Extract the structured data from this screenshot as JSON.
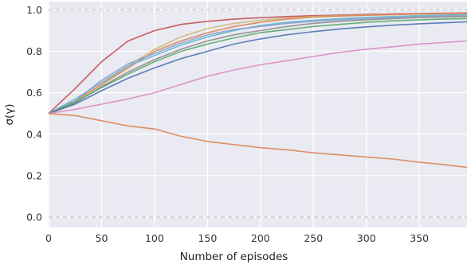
{
  "chart_data": {
    "type": "line",
    "title": "",
    "xlabel": "Number of episodes",
    "ylabel": "σ(γ)",
    "xlim": [
      0,
      395
    ],
    "ylim": [
      -0.05,
      1.04
    ],
    "xticks": [
      0,
      50,
      100,
      150,
      200,
      250,
      300,
      350
    ],
    "yticks": [
      0.0,
      0.2,
      0.4,
      0.6,
      0.8,
      1.0
    ],
    "grid": true,
    "background": "#eaeaf2",
    "reference_lines": [
      {
        "y": 0.0,
        "style": "dashed",
        "color": "#c8c8c8"
      },
      {
        "y": 1.0,
        "style": "dashed",
        "color": "#c8c8c8"
      }
    ],
    "x": [
      0,
      25,
      50,
      75,
      100,
      125,
      150,
      175,
      200,
      225,
      250,
      275,
      300,
      325,
      350,
      375,
      395
    ],
    "series": [
      {
        "color": "#c44e52",
        "values": [
          0.5,
          0.62,
          0.75,
          0.85,
          0.9,
          0.93,
          0.945,
          0.955,
          0.962,
          0.968,
          0.972,
          0.975,
          0.978,
          0.98,
          0.982,
          0.984,
          0.985
        ]
      },
      {
        "color": "#ccb974",
        "values": [
          0.5,
          0.56,
          0.64,
          0.73,
          0.81,
          0.87,
          0.91,
          0.935,
          0.95,
          0.96,
          0.968,
          0.972,
          0.975,
          0.978,
          0.98,
          0.982,
          0.983
        ]
      },
      {
        "color": "#dd8452",
        "values": [
          0.5,
          0.56,
          0.64,
          0.72,
          0.8,
          0.85,
          0.89,
          0.92,
          0.94,
          0.955,
          0.965,
          0.97,
          0.974,
          0.977,
          0.98,
          0.982,
          0.983
        ]
      },
      {
        "color": "#64b5cd",
        "values": [
          0.5,
          0.57,
          0.65,
          0.73,
          0.78,
          0.83,
          0.87,
          0.9,
          0.925,
          0.94,
          0.95,
          0.958,
          0.964,
          0.968,
          0.972,
          0.975,
          0.977
        ]
      },
      {
        "color": "#8da0cb",
        "values": [
          0.5,
          0.56,
          0.66,
          0.74,
          0.79,
          0.84,
          0.88,
          0.905,
          0.92,
          0.935,
          0.945,
          0.952,
          0.958,
          0.963,
          0.967,
          0.97,
          0.972
        ]
      },
      {
        "color": "#8c8c8c",
        "values": [
          0.5,
          0.55,
          0.63,
          0.7,
          0.76,
          0.81,
          0.85,
          0.88,
          0.9,
          0.92,
          0.935,
          0.945,
          0.952,
          0.958,
          0.963,
          0.966,
          0.968
        ]
      },
      {
        "color": "#55a868",
        "values": [
          0.5,
          0.555,
          0.625,
          0.69,
          0.75,
          0.8,
          0.835,
          0.865,
          0.89,
          0.905,
          0.92,
          0.93,
          0.94,
          0.947,
          0.952,
          0.956,
          0.958
        ]
      },
      {
        "color": "#4c72b0",
        "values": [
          0.5,
          0.545,
          0.61,
          0.67,
          0.72,
          0.765,
          0.8,
          0.835,
          0.86,
          0.88,
          0.895,
          0.908,
          0.918,
          0.926,
          0.933,
          0.938,
          0.942
        ]
      },
      {
        "color": "#da8bc3",
        "values": [
          0.5,
          0.52,
          0.545,
          0.57,
          0.6,
          0.64,
          0.68,
          0.71,
          0.735,
          0.755,
          0.775,
          0.795,
          0.81,
          0.822,
          0.835,
          0.843,
          0.85
        ]
      },
      {
        "color": "#dd8452",
        "values": [
          0.5,
          0.49,
          0.465,
          0.44,
          0.425,
          0.39,
          0.365,
          0.35,
          0.335,
          0.325,
          0.31,
          0.3,
          0.29,
          0.28,
          0.265,
          0.252,
          0.24
        ]
      }
    ]
  }
}
